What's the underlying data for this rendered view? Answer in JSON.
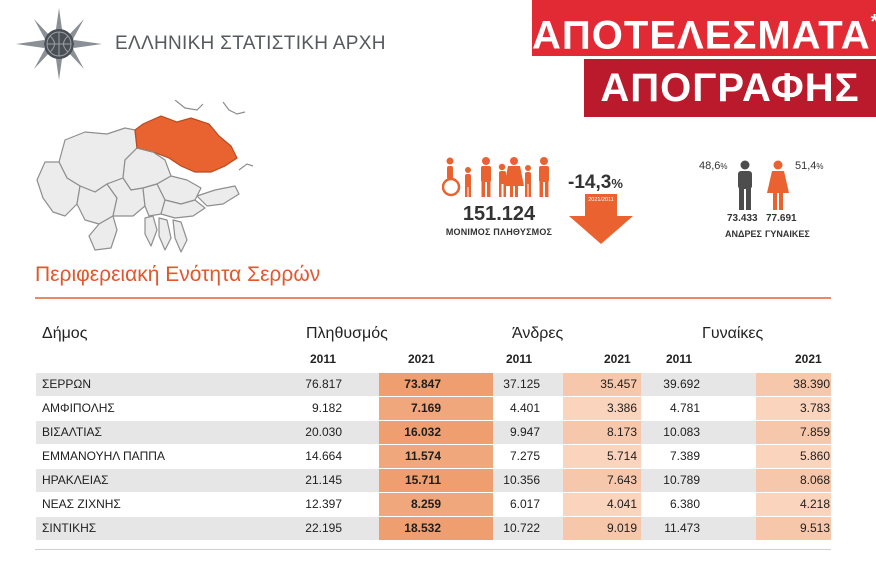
{
  "header": {
    "agency_name": "ΕΛΛΗΝΙΚΗ ΣΤΑΤΙΣΤΙΚΗ ΑΡΧΗ",
    "banner_line1": "ΑΠΟΤΕΛΕΣΜΑΤΑ",
    "banner_star": "*",
    "banner_line2": "ΑΠΟΓΡΑΦΗΣ"
  },
  "map": {
    "icon": "macedonia-region-map-icon",
    "highlight_color": "#e8632f"
  },
  "region": {
    "title": "Περιφερειακή Ενότητα Σερρών"
  },
  "summary": {
    "population_value": "151.124",
    "population_label": "ΜΟΝΙΜΟΣ ΠΛΗΘΥΣΜΟΣ",
    "change_value": "-14,3",
    "change_unit": "%",
    "arrow_caption": "2021/2011",
    "men_pct": "48,6",
    "women_pct": "51,4",
    "pct_unit": "%",
    "men_count": "73.433",
    "women_count": "77.691",
    "men_label": "ΑΝΔΡΕΣ",
    "women_label": "ΓΥΝΑΙΚΕΣ"
  },
  "colors": {
    "accent": "#e2572c",
    "banner_red": "#e22a34",
    "banner_dark": "#ba1a2b"
  },
  "table": {
    "col_municipality": "Δήμος",
    "col_population": "Πληθυσμός",
    "col_men": "Άνδρες",
    "col_women": "Γυναίκες",
    "years": [
      "2011",
      "2021",
      "2011",
      "2021",
      "2011",
      "2021"
    ],
    "rows": [
      {
        "name": "ΣΕΡΡΩΝ",
        "values": [
          "76.817",
          "73.847",
          "37.125",
          "35.457",
          "39.692",
          "38.390"
        ]
      },
      {
        "name": "ΑΜΦΙΠΟΛΗΣ",
        "values": [
          "9.182",
          "7.169",
          "4.401",
          "3.386",
          "4.781",
          "3.783"
        ]
      },
      {
        "name": "ΒΙΣΑΛΤΙΑΣ",
        "values": [
          "20.030",
          "16.032",
          "9.947",
          "8.173",
          "10.083",
          "7.859"
        ]
      },
      {
        "name": "ΕΜΜΑΝΟΥΗΛ ΠΑΠΠΑ",
        "values": [
          "14.664",
          "11.574",
          "7.275",
          "5.714",
          "7.389",
          "5.860"
        ]
      },
      {
        "name": "ΗΡΑΚΛΕΙΑΣ",
        "values": [
          "21.145",
          "15.711",
          "10.356",
          "7.643",
          "10.789",
          "8.068"
        ]
      },
      {
        "name": "ΝΕΑΣ ΖΙΧΝΗΣ",
        "values": [
          "12.397",
          "8.259",
          "6.017",
          "4.041",
          "6.380",
          "4.218"
        ]
      },
      {
        "name": "ΣΙΝΤΙΚΗΣ",
        "values": [
          "22.195",
          "18.532",
          "10.722",
          "9.019",
          "11.473",
          "9.513"
        ]
      }
    ]
  }
}
